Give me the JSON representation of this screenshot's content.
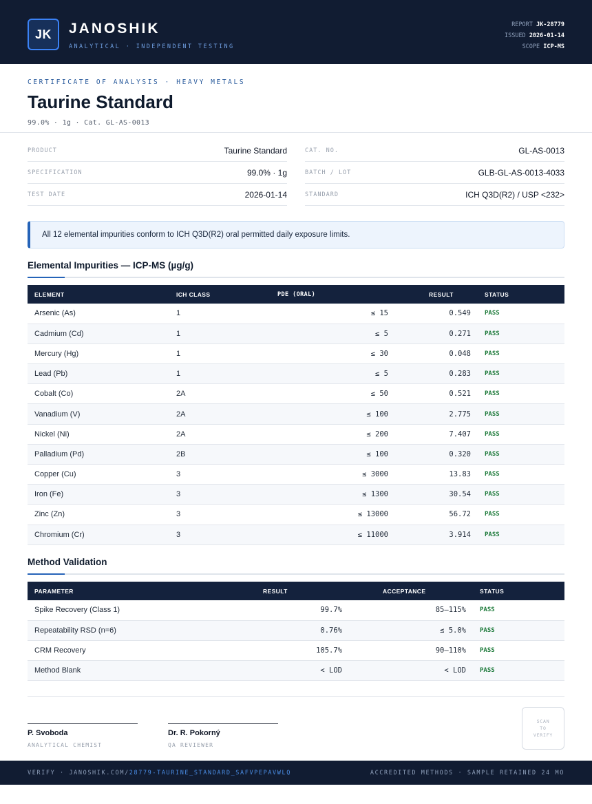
{
  "header": {
    "logo_initials": "JK",
    "brand_name": "JANOSHIK",
    "brand_tagline": "ANALYTICAL · INDEPENDENT TESTING",
    "report_label": "REPORT",
    "report_value": "JK-28779",
    "issued_label": "ISSUED",
    "issued_value": "2026-01-14",
    "scope_label": "SCOPE",
    "scope_value": "ICP-MS"
  },
  "title_block": {
    "eyebrow": "CERTIFICATE OF ANALYSIS · HEAVY METALS",
    "title": "Taurine Standard",
    "subtitle": "99.0% · 1g  ·  Cat. GL-AS-0013"
  },
  "info": {
    "left": [
      {
        "label": "PRODUCT",
        "value": "Taurine Standard"
      },
      {
        "label": "SPECIFICATION",
        "value": "99.0% · 1g"
      },
      {
        "label": "TEST DATE",
        "value": "2026-01-14"
      }
    ],
    "right": [
      {
        "label": "CAT. NO.",
        "value": "GL-AS-0013"
      },
      {
        "label": "BATCH / LOT",
        "value": "GLB-GL-AS-0013-4033"
      },
      {
        "label": "STANDARD",
        "value": "ICH Q3D(R2) / USP <232>"
      }
    ]
  },
  "notice": "All 12 elemental impurities conform to ICH Q3D(R2) oral permitted daily exposure limits.",
  "impurities": {
    "title": "Elemental Impurities — ICP-MS (µg/g)",
    "headers": [
      "ELEMENT",
      "ICH CLASS",
      "PDE (ORAL)",
      "RESULT",
      "STATUS"
    ],
    "rows": [
      {
        "element": "Arsenic (As)",
        "class": "1",
        "pde": "≤ 15",
        "result": "0.549",
        "status": "PASS"
      },
      {
        "element": "Cadmium (Cd)",
        "class": "1",
        "pde": "≤ 5",
        "result": "0.271",
        "status": "PASS"
      },
      {
        "element": "Mercury (Hg)",
        "class": "1",
        "pde": "≤ 30",
        "result": "0.048",
        "status": "PASS"
      },
      {
        "element": "Lead (Pb)",
        "class": "1",
        "pde": "≤ 5",
        "result": "0.283",
        "status": "PASS"
      },
      {
        "element": "Cobalt (Co)",
        "class": "2A",
        "pde": "≤ 50",
        "result": "0.521",
        "status": "PASS"
      },
      {
        "element": "Vanadium (V)",
        "class": "2A",
        "pde": "≤ 100",
        "result": "2.775",
        "status": "PASS"
      },
      {
        "element": "Nickel (Ni)",
        "class": "2A",
        "pde": "≤ 200",
        "result": "7.407",
        "status": "PASS"
      },
      {
        "element": "Palladium (Pd)",
        "class": "2B",
        "pde": "≤ 100",
        "result": "0.320",
        "status": "PASS"
      },
      {
        "element": "Copper (Cu)",
        "class": "3",
        "pde": "≤ 3000",
        "result": "13.83",
        "status": "PASS"
      },
      {
        "element": "Iron (Fe)",
        "class": "3",
        "pde": "≤ 1300",
        "result": "30.54",
        "status": "PASS"
      },
      {
        "element": "Zinc (Zn)",
        "class": "3",
        "pde": "≤ 13000",
        "result": "56.72",
        "status": "PASS"
      },
      {
        "element": "Chromium (Cr)",
        "class": "3",
        "pde": "≤ 11000",
        "result": "3.914",
        "status": "PASS"
      }
    ]
  },
  "validation": {
    "title": "Method Validation",
    "headers": [
      "PARAMETER",
      "RESULT",
      "ACCEPTANCE",
      "STATUS"
    ],
    "rows": [
      {
        "parameter": "Spike Recovery (Class 1)",
        "result": "99.7%",
        "acceptance": "85–115%",
        "status": "PASS"
      },
      {
        "parameter": "Repeatability RSD (n=6)",
        "result": "0.76%",
        "acceptance": "≤ 5.0%",
        "status": "PASS"
      },
      {
        "parameter": "CRM Recovery",
        "result": "105.7%",
        "acceptance": "90–110%",
        "status": "PASS"
      },
      {
        "parameter": "Method Blank",
        "result": "< LOD",
        "acceptance": "< LOD",
        "status": "PASS"
      }
    ]
  },
  "signatures": [
    {
      "name": "P. Svoboda",
      "role": "ANALYTICAL CHEMIST"
    },
    {
      "name": "Dr. R. Pokorný",
      "role": "QA REVIEWER"
    }
  ],
  "qr": {
    "line1": "SCAN",
    "line2": "TO",
    "line3": "VERIFY"
  },
  "footer": {
    "verify_prefix": "VERIFY · JANOSHIK.COM/",
    "verify_path": "28779-TAURINE_STANDARD_SAFVPEPAVWLQ",
    "right": "ACCREDITED METHODS · SAMPLE RETAINED 24 MO"
  }
}
